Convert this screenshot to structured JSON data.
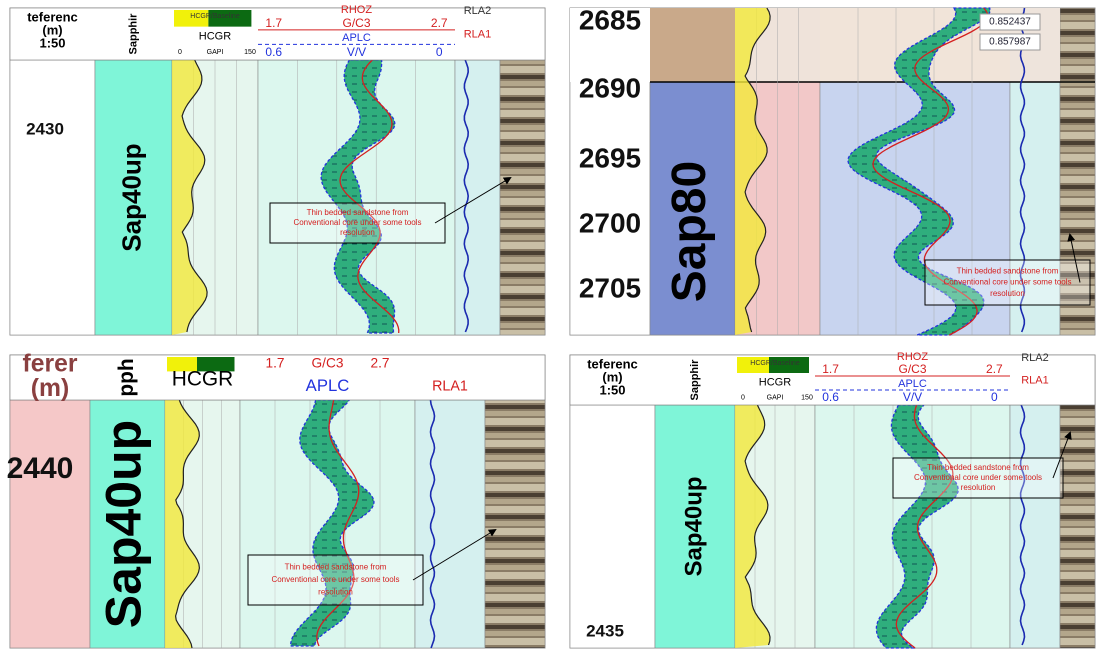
{
  "panels": [
    {
      "depth_header": [
        "teferenc",
        "(m)",
        "1:50"
      ],
      "zone_header": "Sapphir",
      "gr_header": {
        "legend": "HCGR/Baseline",
        "curve": "HCGR",
        "scale": [
          "0",
          "GAPI",
          "150"
        ]
      },
      "density_header": {
        "curve": "RHOZ",
        "scale": [
          "1.7",
          "G/C3",
          "2.7"
        ],
        "porosity": "APLC",
        "porosity_scale": [
          "0.6",
          "V/V",
          "0"
        ]
      },
      "resistivity_header": [
        "RLA2",
        "RLA1"
      ],
      "depths": [
        "2430"
      ],
      "zone": "Sap40up",
      "annotation": [
        "Thin bedded sandstone from",
        "Conventional core under some tools",
        "resolution"
      ]
    },
    {
      "readouts": [
        "0.852437",
        "0.857987"
      ],
      "depths": [
        "2685",
        "2690",
        "2695",
        "2700",
        "2705"
      ],
      "zone": "Sap80",
      "annotation": [
        "Thin bedded sandstone from",
        "Conventional core under some tools",
        "resolution"
      ]
    },
    {
      "depth_header": [
        "ferer",
        "(m)"
      ],
      "zone_header": "pph",
      "gr_header": {
        "curve": "HCGR"
      },
      "density_header": {
        "scale": [
          "1.7",
          "G/C3",
          "2.7"
        ],
        "porosity": "APLC"
      },
      "resistivity_header": [
        "RLA1"
      ],
      "depths": [
        "2440"
      ],
      "zone": "Sap40up",
      "annotation": [
        "Thin bedded sandstone from",
        "Conventional core under some tools",
        "resolution"
      ]
    },
    {
      "depth_header": [
        "teferenc",
        "(m)",
        "1:50"
      ],
      "zone_header": "Sapphir",
      "gr_header": {
        "legend": "HCGR/Baseline",
        "curve": "HCGR",
        "scale": [
          "0",
          "GAPI",
          "150"
        ]
      },
      "density_header": {
        "curve": "RHOZ",
        "scale": [
          "1.7",
          "G/C3",
          "2.7"
        ],
        "porosity": "APLC",
        "porosity_scale": [
          "0.6",
          "V/V",
          "0"
        ]
      },
      "resistivity_header": [
        "RLA2",
        "RLA1"
      ],
      "depths": [
        "2435"
      ],
      "zone": "Sap40up",
      "annotation": [
        "Thin bedded sandstone from",
        "Conventional core under some tools",
        "resolution"
      ]
    }
  ]
}
